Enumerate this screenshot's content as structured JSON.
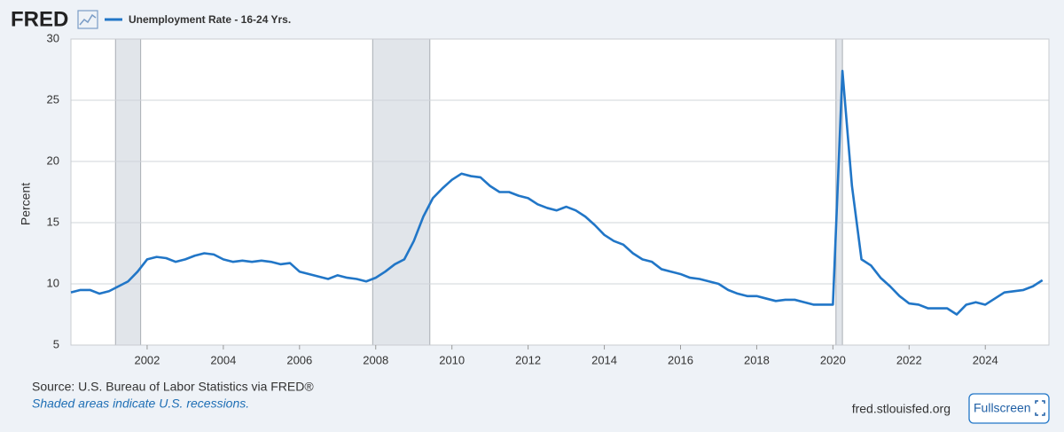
{
  "chart_data": {
    "type": "line",
    "logo": "FRED",
    "title": "Unemployment Rate - 16-24 Yrs.",
    "y_label": "Percent",
    "source": "Source: U.S. Bureau of Labor Statistics via FRED®",
    "note": "Shaded areas indicate U.S. recessions.",
    "link": "fred.stlouisfed.org",
    "button": "Fullscreen",
    "x": [
      2000,
      2000.25,
      2000.5,
      2000.75,
      2001,
      2001.25,
      2001.5,
      2001.75,
      2002,
      2002.25,
      2002.5,
      2002.75,
      2003,
      2003.25,
      2003.5,
      2003.75,
      2004,
      2004.25,
      2004.5,
      2004.75,
      2005,
      2005.25,
      2005.5,
      2005.75,
      2006,
      2006.25,
      2006.5,
      2006.75,
      2007,
      2007.25,
      2007.5,
      2007.75,
      2008,
      2008.25,
      2008.5,
      2008.75,
      2009,
      2009.25,
      2009.5,
      2009.75,
      2010,
      2010.25,
      2010.5,
      2010.75,
      2011,
      2011.25,
      2011.5,
      2011.75,
      2012,
      2012.25,
      2012.5,
      2012.75,
      2013,
      2013.25,
      2013.5,
      2013.75,
      2014,
      2014.25,
      2014.5,
      2014.75,
      2015,
      2015.25,
      2015.5,
      2015.75,
      2016,
      2016.25,
      2016.5,
      2016.75,
      2017,
      2017.25,
      2017.5,
      2017.75,
      2018,
      2018.25,
      2018.5,
      2018.75,
      2019,
      2019.25,
      2019.5,
      2019.75,
      2020,
      2020.25,
      2020.5,
      2020.75,
      2021,
      2021.25,
      2021.5,
      2021.75,
      2022,
      2022.25,
      2022.5,
      2022.75,
      2023,
      2023.25,
      2023.5,
      2023.75,
      2024,
      2024.25,
      2024.5,
      2024.75,
      2025,
      2025.25,
      2025.5
    ],
    "series": [
      {
        "name": "Unemployment Rate - 16-24 Yrs.",
        "color": "#2176c7",
        "values": [
          9.3,
          9.5,
          9.5,
          9.2,
          9.4,
          9.8,
          10.2,
          11.0,
          12.0,
          12.2,
          12.1,
          11.8,
          12.0,
          12.3,
          12.5,
          12.4,
          12.0,
          11.8,
          11.9,
          11.8,
          11.9,
          11.8,
          11.6,
          11.7,
          11.0,
          10.8,
          10.6,
          10.4,
          10.7,
          10.5,
          10.4,
          10.2,
          10.5,
          11.0,
          11.6,
          12.0,
          13.5,
          15.5,
          17.0,
          17.8,
          18.5,
          19.0,
          18.8,
          18.7,
          18.0,
          17.5,
          17.5,
          17.2,
          17.0,
          16.5,
          16.2,
          16.0,
          16.3,
          16.0,
          15.5,
          14.8,
          14.0,
          13.5,
          13.2,
          12.5,
          12.0,
          11.8,
          11.2,
          11.0,
          10.8,
          10.5,
          10.4,
          10.2,
          10.0,
          9.5,
          9.2,
          9.0,
          9.0,
          8.8,
          8.6,
          8.7,
          8.7,
          8.5,
          8.3,
          8.3,
          8.3,
          27.4,
          18.0,
          12.0,
          11.5,
          10.5,
          9.8,
          9.0,
          8.4,
          8.3,
          8.0,
          8.0,
          8.0,
          7.5,
          8.3,
          8.5,
          8.3,
          8.8,
          9.3,
          9.4,
          9.5,
          9.8,
          10.3
        ]
      }
    ],
    "recessions": [
      [
        2001.17,
        2001.83
      ],
      [
        2007.92,
        2009.42
      ],
      [
        2020.08,
        2020.25
      ]
    ],
    "xlim": [
      2000,
      2025.67
    ],
    "ylim": [
      5,
      30
    ],
    "xticks": [
      2002,
      2004,
      2006,
      2008,
      2010,
      2012,
      2014,
      2016,
      2018,
      2020,
      2022,
      2024
    ],
    "yticks": [
      5,
      10,
      15,
      20,
      25,
      30
    ],
    "grid": true
  }
}
